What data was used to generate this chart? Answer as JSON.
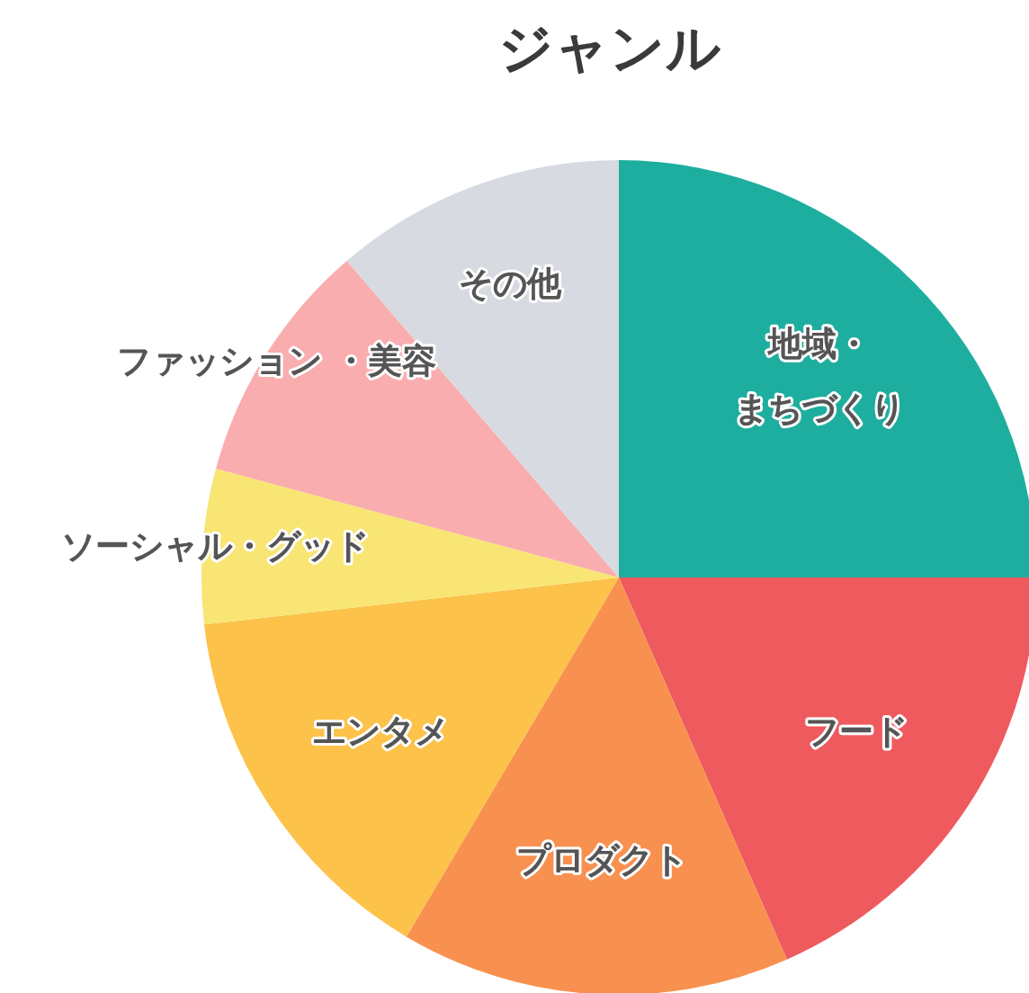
{
  "chart_data": {
    "type": "pie",
    "title": "ジャンル",
    "categories": [
      "地域・まちづくり",
      "フード",
      "プロダクト",
      "エンタメ",
      "ソーシャル・グッド",
      "ファッション ・美容",
      "その他"
    ],
    "values": [
      25,
      18.4,
      15.1,
      14.7,
      6.0,
      9.5,
      11.3
    ],
    "colors": [
      "#1eae9f",
      "#ee5a5e",
      "#f8914f",
      "#fcc24a",
      "#f8e574",
      "#f9adae",
      "#d7dbe1"
    ]
  }
}
